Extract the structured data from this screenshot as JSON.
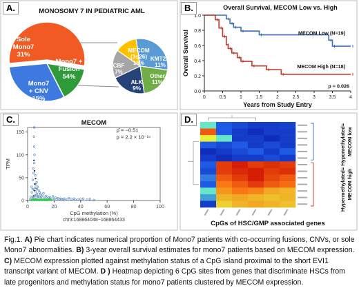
{
  "panels": {
    "a": {
      "label": "A.",
      "title": "MONOSOMY 7 IN PEDIATRIC AML",
      "main_pie": [
        {
          "name": "Sole Monosomy 7",
          "label_lines": [
            "Sole",
            "Mono7",
            "31%"
          ],
          "value": 31,
          "color": "#3e79df"
        },
        {
          "name": "Mono7 + Fusion",
          "label_lines": [
            "Mono7 +",
            "Fusion",
            "54%"
          ],
          "value": 54,
          "color": "#f15a22"
        },
        {
          "name": "Mono7 + CNV",
          "label_lines": [
            "Mono7",
            "+ CNV",
            "15%"
          ],
          "value": 15,
          "color": "#2e9a3a"
        }
      ],
      "sub_pie": [
        {
          "name": "MECOM (3q26)",
          "label_lines": [
            "MECOM",
            "(3q26)",
            "16%"
          ],
          "value": 16,
          "color": "#5b9bd5"
        },
        {
          "name": "KMT2A",
          "label_lines": [
            "KMT2A",
            "11%"
          ],
          "value": 11,
          "color": "#70ad47"
        },
        {
          "name": "Other",
          "label_lines": [
            "Other",
            "11%"
          ],
          "value": 11,
          "color": "#264478"
        },
        {
          "name": "ALK",
          "label_lines": [
            "ALK",
            "9%"
          ],
          "value": 9,
          "color": "#a5a5a5"
        },
        {
          "name": "CBF",
          "label_lines": [
            "CBF",
            "7%"
          ],
          "value": 7,
          "color": "#ffc000"
        }
      ],
      "colors": {
        "connector": "#8a8a8a"
      }
    },
    "b": {
      "label": "B.",
      "chart_data": {
        "type": "line",
        "title": "Overall Survival, MECOM Low vs. High",
        "xlabel": "Years from Study Entry",
        "ylabel": "Overall Survival",
        "xlim": [
          0,
          4
        ],
        "ylim": [
          0,
          1
        ],
        "x_ticks": [
          "0",
          "0.5",
          "1",
          "1.5",
          "2",
          "2.5",
          "3",
          "3.5",
          "4"
        ],
        "y_ticks": [
          "0.0",
          "0.2",
          "0.4",
          "0.6",
          "0.8",
          "1.0"
        ],
        "pvalue": "p = 0.026",
        "series": [
          {
            "name": "MECOM Low (N=19)",
            "color": "#3a6fb3",
            "steps": [
              [
                0,
                1.0
              ],
              [
                0.6,
                0.95
              ],
              [
                0.7,
                0.89
              ],
              [
                0.8,
                0.84
              ],
              [
                1.0,
                0.79
              ],
              [
                1.5,
                0.74
              ],
              [
                3.4,
                0.67
              ],
              [
                3.5,
                0.59
              ],
              [
                4.0,
                0.59
              ]
            ]
          },
          {
            "name": "MECOM High (N=18)",
            "color": "#c0392b",
            "steps": [
              [
                0,
                1.0
              ],
              [
                0.3,
                0.94
              ],
              [
                0.4,
                0.83
              ],
              [
                0.5,
                0.72
              ],
              [
                0.6,
                0.61
              ],
              [
                0.65,
                0.56
              ],
              [
                0.75,
                0.5
              ],
              [
                0.9,
                0.44
              ],
              [
                1.0,
                0.39
              ],
              [
                1.3,
                0.33
              ],
              [
                1.7,
                0.28
              ],
              [
                2.1,
                0.22
              ],
              [
                4.0,
                0.22
              ]
            ]
          }
        ]
      }
    },
    "c": {
      "label": "C.",
      "chart_data": {
        "type": "scatter",
        "title": "MECOM",
        "xlabel": "CpG methylation (%)",
        "xlabel2": "chr3:168864048−168864433",
        "ylabel": "TPM",
        "xlim": [
          0,
          100
        ],
        "ylim": [
          0,
          160
        ],
        "x_ticks": [
          "0",
          "20",
          "40",
          "60",
          "80",
          "100"
        ],
        "y_ticks": [
          "0",
          "50",
          "100",
          "150"
        ],
        "stat1": "ρ̂ = −0.51",
        "stat2": "p = 2.2 × 10⁻¹⁵",
        "point_color": "#4a7fbf",
        "points": [
          [
            3.5,
            2
          ],
          [
            4,
            5
          ],
          [
            4.5,
            8
          ],
          [
            5,
            3
          ],
          [
            5.5,
            12
          ],
          [
            6,
            20
          ],
          [
            6.5,
            4
          ],
          [
            7,
            15
          ],
          [
            3,
            30
          ],
          [
            4,
            45
          ],
          [
            4.5,
            60
          ],
          [
            5,
            82
          ],
          [
            5.2,
            100
          ],
          [
            5,
            118
          ],
          [
            4.8,
            140
          ],
          [
            5,
            160
          ],
          [
            3.8,
            25
          ],
          [
            6.2,
            35
          ],
          [
            7,
            25
          ],
          [
            8,
            10
          ],
          [
            9,
            18
          ],
          [
            10,
            6
          ],
          [
            11,
            12
          ],
          [
            12,
            4
          ],
          [
            13,
            8
          ],
          [
            14,
            3
          ],
          [
            15,
            5
          ],
          [
            16,
            2
          ],
          [
            17,
            6
          ],
          [
            18,
            3
          ],
          [
            20,
            4
          ],
          [
            22,
            2
          ],
          [
            24,
            3
          ],
          [
            26,
            2
          ],
          [
            28,
            4
          ],
          [
            30,
            2
          ],
          [
            33,
            3
          ],
          [
            36,
            2
          ],
          [
            40,
            3
          ],
          [
            45,
            2
          ],
          [
            50,
            1
          ],
          [
            4.2,
            70
          ],
          [
            5.8,
            55
          ],
          [
            6.8,
            40
          ],
          [
            7.5,
            30
          ],
          [
            8.5,
            22
          ],
          [
            9.5,
            14
          ],
          [
            10.5,
            9
          ],
          [
            3.2,
            18
          ],
          [
            2.5,
            8
          ],
          [
            2,
            3
          ],
          [
            5.6,
            28
          ],
          [
            6.6,
            10
          ],
          [
            7.8,
            5
          ],
          [
            8.8,
            8
          ],
          [
            12,
            16
          ],
          [
            14,
            10
          ],
          [
            16,
            7
          ],
          [
            19,
            9
          ],
          [
            21,
            6
          ],
          [
            23,
            5
          ],
          [
            25,
            4
          ],
          [
            27,
            3
          ],
          [
            31,
            5
          ],
          [
            35,
            4
          ],
          [
            38,
            2
          ],
          [
            42,
            4
          ],
          [
            47,
            3
          ]
        ],
        "green_points": [
          [
            3,
            1
          ],
          [
            4,
            1.5
          ],
          [
            5,
            1
          ],
          [
            6,
            2
          ],
          [
            7,
            1
          ],
          [
            8,
            1.5
          ],
          [
            9,
            1
          ],
          [
            10,
            2
          ],
          [
            11,
            1
          ],
          [
            12,
            1.5
          ],
          [
            13,
            1
          ],
          [
            14,
            1.2
          ],
          [
            15,
            1
          ],
          [
            16,
            1.5
          ],
          [
            17,
            1
          ],
          [
            18,
            1.2
          ]
        ],
        "black_points": [
          [
            4.5,
            10
          ],
          [
            5,
            22
          ],
          [
            5.5,
            36
          ],
          [
            6,
            48
          ],
          [
            5.2,
            65
          ],
          [
            4.8,
            88
          ]
        ]
      }
    },
    "d": {
      "label": "D.",
      "chart_data": {
        "type": "heatmap",
        "xlabel": "CpGs of HSC/GMP associated genes",
        "group_labels": [
          "Hypermethylated= Hypomethylated=",
          "MECOM low",
          "MECOM high"
        ],
        "rows": 13,
        "cols": 6,
        "values": [
          [
            0.5,
            0.3,
            0.25,
            0.2,
            0.2,
            0.22
          ],
          [
            0.85,
            0.3,
            0.2,
            0.15,
            0.2,
            0.2
          ],
          [
            0.6,
            0.5,
            0.2,
            0.2,
            0.15,
            0.2
          ],
          [
            0.3,
            0.25,
            0.3,
            0.2,
            0.25,
            0.2
          ],
          [
            0.15,
            0.2,
            0.25,
            0.3,
            0.2,
            0.3
          ],
          [
            0.2,
            0.15,
            0.2,
            0.2,
            0.25,
            0.2
          ],
          [
            0.3,
            0.9,
            0.95,
            0.9,
            0.92,
            0.9
          ],
          [
            0.25,
            0.9,
            0.93,
            0.95,
            0.9,
            0.92
          ],
          [
            0.35,
            0.85,
            0.9,
            0.95,
            0.88,
            0.85
          ],
          [
            0.3,
            0.8,
            0.85,
            0.9,
            0.85,
            0.82
          ],
          [
            0.5,
            0.75,
            0.8,
            0.78,
            0.72,
            0.7
          ],
          [
            0.4,
            0.7,
            0.72,
            0.7,
            0.68,
            0.7
          ],
          [
            0.2,
            0.65,
            0.7,
            0.72,
            0.7,
            0.68
          ]
        ]
      }
    }
  },
  "caption": {
    "fig": "Fig.1. ",
    "a_label": "A)",
    "a_text": " Pie chart indicates numerical proportion of Mono7 patients with co-occurring fusions, CNVs, or sole Mono7 abnormalities. ",
    "b_label": "B)",
    "b_text": " 3-year overall survival estimates for mono7 patients based on MECOM expression. ",
    "c_label": "C)",
    "c_text": " MECOM expression plotted against methylation status of a CpG island proximal to the short EVI1 transcript variant of MECOM. ",
    "d_label": "D )",
    "d_text": " Heatmap depicting 6 CpG sites from genes that discriminate HSCs from late progenitors and methylation status for mono7 patients clustered by MECOM expression."
  }
}
